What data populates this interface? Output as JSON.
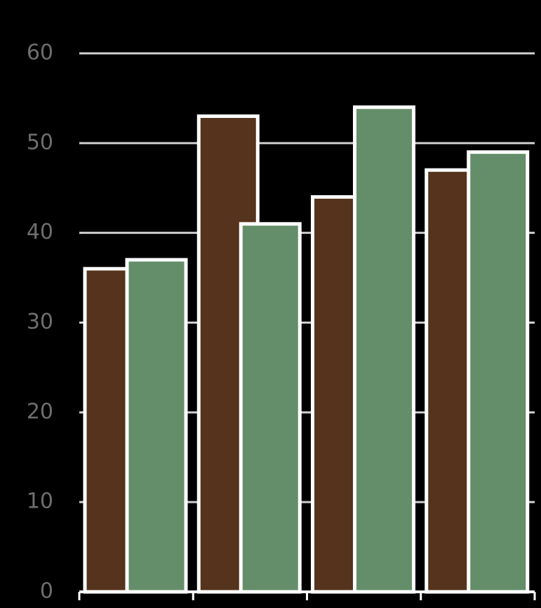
{
  "chart_data": {
    "type": "bar",
    "categories": [
      null,
      null,
      null,
      null
    ],
    "series": [
      {
        "color": "#55331c",
        "values": [
          36,
          53,
          44,
          47
        ]
      },
      {
        "color": "#648e69",
        "values": [
          37,
          41,
          54,
          49
        ]
      }
    ],
    "ylim": [
      0,
      60
    ],
    "yticks": [
      0,
      10,
      20,
      30,
      40,
      50,
      60
    ],
    "grid": true
  }
}
